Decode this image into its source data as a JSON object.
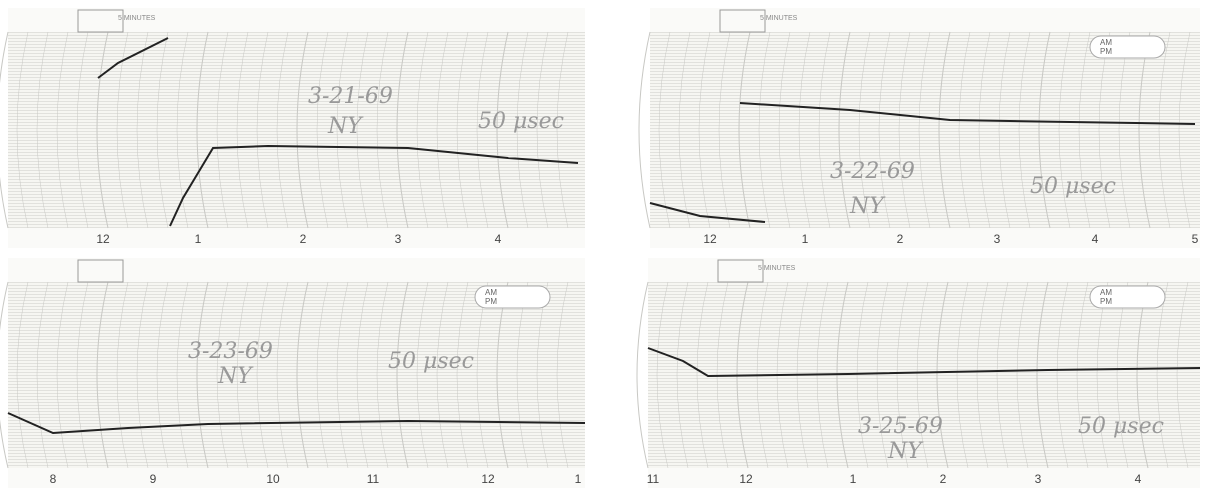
{
  "panels": [
    {
      "header": "5 MINUTES",
      "date": "3-21-69",
      "place": "NY",
      "note": "50 μsec",
      "hours": [
        "12",
        "1",
        "2",
        "3",
        "4"
      ]
    },
    {
      "header": "5 MINUTES",
      "am_pm": [
        "AM",
        "PM"
      ],
      "date": "3-22-69",
      "place": "NY",
      "note": "50 μsec",
      "hours": [
        "12",
        "1",
        "2",
        "3",
        "4",
        "5"
      ]
    },
    {
      "am_pm": [
        "AM",
        "PM"
      ],
      "date": "3-23-69",
      "place": "NY",
      "note": "50 μsec",
      "hours": [
        "8",
        "9",
        "10",
        "11",
        "12",
        "1"
      ]
    },
    {
      "header": "5 MINUTES",
      "am_pm": [
        "AM",
        "PM"
      ],
      "date": "3-25-69",
      "place": "NY",
      "note": "50 μsec",
      "hours": [
        "11",
        "12",
        "1",
        "2",
        "3",
        "4"
      ]
    }
  ]
}
